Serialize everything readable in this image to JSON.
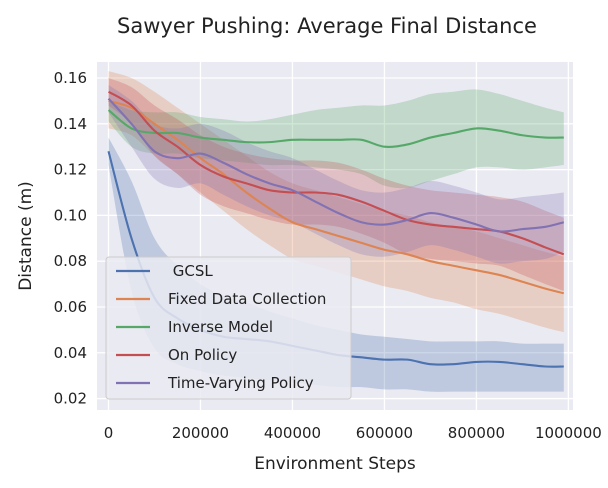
{
  "chart_data": {
    "type": "line",
    "title": "Sawyer Pushing: Average Final Distance",
    "xlabel": "Environment Steps",
    "ylabel": "Distance (m)",
    "xlim": [
      -25000,
      1010000
    ],
    "ylim": [
      0.015,
      0.167
    ],
    "xticks": [
      0,
      200000,
      400000,
      600000,
      800000,
      1000000
    ],
    "xtick_labels": [
      "0",
      "200000",
      "400000",
      "600000",
      "800000",
      "1000000"
    ],
    "yticks": [
      0.02,
      0.04,
      0.06,
      0.08,
      0.1,
      0.12,
      0.14,
      0.16
    ],
    "ytick_labels": [
      "0.02",
      "0.04",
      "0.06",
      "0.08",
      "0.10",
      "0.12",
      "0.14",
      "0.16"
    ],
    "grid": true,
    "background": "#eaeaf2",
    "legend_position": "lower-left",
    "x": [
      0,
      50000,
      100000,
      150000,
      200000,
      250000,
      300000,
      350000,
      400000,
      450000,
      500000,
      550000,
      600000,
      650000,
      700000,
      750000,
      800000,
      850000,
      900000,
      950000,
      990000
    ],
    "series": [
      {
        "name": " GCSL",
        "color": "#4c72b0",
        "values": [
          0.128,
          0.09,
          0.064,
          0.055,
          0.05,
          0.047,
          0.046,
          0.045,
          0.043,
          0.041,
          0.039,
          0.038,
          0.037,
          0.037,
          0.035,
          0.035,
          0.036,
          0.036,
          0.035,
          0.034,
          0.034
        ],
        "upper": [
          0.134,
          0.115,
          0.09,
          0.078,
          0.07,
          0.065,
          0.062,
          0.058,
          0.055,
          0.052,
          0.05,
          0.048,
          0.047,
          0.046,
          0.045,
          0.045,
          0.045,
          0.045,
          0.044,
          0.044,
          0.044
        ],
        "lower": [
          0.122,
          0.067,
          0.042,
          0.035,
          0.032,
          0.03,
          0.029,
          0.028,
          0.027,
          0.026,
          0.025,
          0.025,
          0.024,
          0.024,
          0.023,
          0.023,
          0.023,
          0.023,
          0.023,
          0.023,
          0.023
        ]
      },
      {
        "name": "Fixed Data Collection",
        "color": "#dd8452",
        "values": [
          0.15,
          0.147,
          0.14,
          0.133,
          0.125,
          0.118,
          0.11,
          0.103,
          0.097,
          0.094,
          0.091,
          0.088,
          0.085,
          0.083,
          0.08,
          0.078,
          0.076,
          0.074,
          0.071,
          0.068,
          0.066
        ],
        "upper": [
          0.163,
          0.16,
          0.154,
          0.147,
          0.14,
          0.133,
          0.126,
          0.119,
          0.114,
          0.111,
          0.108,
          0.105,
          0.102,
          0.1,
          0.097,
          0.095,
          0.093,
          0.09,
          0.087,
          0.084,
          0.082
        ],
        "lower": [
          0.138,
          0.135,
          0.126,
          0.118,
          0.11,
          0.102,
          0.094,
          0.087,
          0.081,
          0.078,
          0.075,
          0.072,
          0.069,
          0.067,
          0.064,
          0.062,
          0.059,
          0.057,
          0.054,
          0.051,
          0.049
        ]
      },
      {
        "name": "Inverse Model",
        "color": "#55a868",
        "values": [
          0.146,
          0.138,
          0.136,
          0.136,
          0.134,
          0.133,
          0.132,
          0.132,
          0.133,
          0.133,
          0.133,
          0.133,
          0.13,
          0.131,
          0.134,
          0.136,
          0.138,
          0.137,
          0.135,
          0.134,
          0.134
        ],
        "upper": [
          0.15,
          0.146,
          0.145,
          0.145,
          0.143,
          0.142,
          0.141,
          0.142,
          0.144,
          0.146,
          0.147,
          0.148,
          0.148,
          0.15,
          0.153,
          0.154,
          0.155,
          0.153,
          0.15,
          0.147,
          0.145
        ],
        "lower": [
          0.141,
          0.13,
          0.127,
          0.127,
          0.125,
          0.124,
          0.123,
          0.122,
          0.122,
          0.121,
          0.12,
          0.118,
          0.113,
          0.112,
          0.115,
          0.118,
          0.121,
          0.121,
          0.12,
          0.121,
          0.122
        ]
      },
      {
        "name": "On Policy",
        "color": "#c44e52",
        "values": [
          0.154,
          0.148,
          0.137,
          0.13,
          0.122,
          0.117,
          0.114,
          0.111,
          0.11,
          0.11,
          0.109,
          0.106,
          0.102,
          0.098,
          0.096,
          0.095,
          0.094,
          0.093,
          0.09,
          0.086,
          0.083
        ],
        "upper": [
          0.16,
          0.156,
          0.148,
          0.142,
          0.135,
          0.13,
          0.127,
          0.125,
          0.124,
          0.124,
          0.123,
          0.12,
          0.116,
          0.113,
          0.111,
          0.11,
          0.109,
          0.108,
          0.106,
          0.102,
          0.099
        ],
        "lower": [
          0.148,
          0.14,
          0.126,
          0.118,
          0.109,
          0.104,
          0.101,
          0.098,
          0.096,
          0.096,
          0.095,
          0.092,
          0.088,
          0.083,
          0.081,
          0.08,
          0.079,
          0.078,
          0.074,
          0.07,
          0.067
        ]
      },
      {
        "name": "Time-Varying Policy",
        "color": "#8172b3",
        "values": [
          0.151,
          0.14,
          0.128,
          0.125,
          0.127,
          0.123,
          0.118,
          0.114,
          0.111,
          0.106,
          0.101,
          0.097,
          0.096,
          0.098,
          0.101,
          0.099,
          0.096,
          0.093,
          0.094,
          0.095,
          0.097
        ],
        "upper": [
          0.157,
          0.15,
          0.14,
          0.138,
          0.14,
          0.137,
          0.132,
          0.128,
          0.125,
          0.12,
          0.115,
          0.111,
          0.11,
          0.112,
          0.115,
          0.113,
          0.11,
          0.107,
          0.108,
          0.109,
          0.11
        ],
        "lower": [
          0.145,
          0.13,
          0.116,
          0.112,
          0.114,
          0.109,
          0.104,
          0.1,
          0.097,
          0.092,
          0.087,
          0.083,
          0.082,
          0.084,
          0.087,
          0.085,
          0.082,
          0.079,
          0.08,
          0.081,
          0.084
        ]
      }
    ]
  }
}
